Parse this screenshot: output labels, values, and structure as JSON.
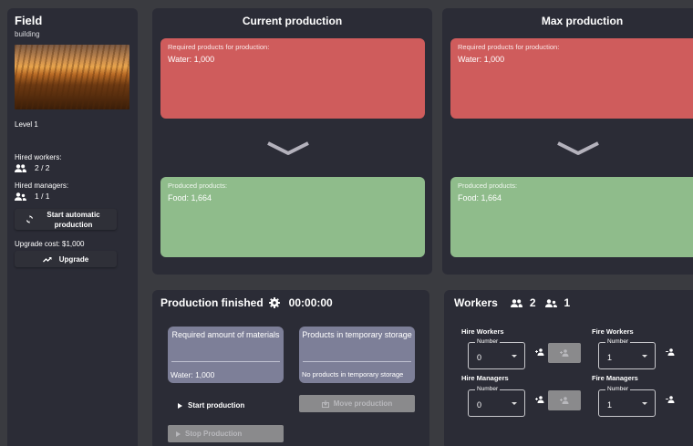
{
  "sidebar": {
    "title": "Field",
    "subtitle": "building",
    "image_icon": "wheat-field-photo",
    "level": "Level 1",
    "hired_workers_label": "Hired workers:",
    "hired_workers_value": "2 / 2",
    "hired_managers_label": "Hired managers:",
    "hired_managers_value": "1 / 1",
    "start_auto_label": "Start automatic production",
    "upgrade_cost": "Upgrade cost: $1,000",
    "upgrade_label": "Upgrade"
  },
  "current_production": {
    "title": "Current production",
    "required_label": "Required products for production:",
    "required_value": "Water: 1,000",
    "produced_label": "Produced products:",
    "produced_value": "Food: 1,664"
  },
  "max_production": {
    "title": "Max production",
    "required_label": "Required products for production:",
    "required_value": "Water: 1,000",
    "produced_label": "Produced products:",
    "produced_value": "Food: 1,664"
  },
  "production_status": {
    "title": "Production finished",
    "timer": "00:00:00",
    "required_title": "Required amount of materials",
    "required_value": "Water: 1,000",
    "storage_title": "Products in temporary storage",
    "storage_value": "No products in temporary storage",
    "start_label": "Start production",
    "move_label": "Move production",
    "stop_label": "Stop Production"
  },
  "workers": {
    "title": "Workers",
    "workers_count": "2",
    "managers_count": "1",
    "hire_workers_label": "Hire Workers",
    "fire_workers_label": "Fire Workers",
    "hire_managers_label": "Hire Managers",
    "fire_managers_label": "Fire Managers",
    "number_label": "Number",
    "hire_workers_value": "0",
    "fire_workers_value": "1",
    "hire_managers_value": "0",
    "fire_managers_value": "1"
  },
  "colors": {
    "background": "#3a3b40",
    "panel": "#2b2c36",
    "required_card": "#cf5c5c",
    "produced_card": "#8fbc8b",
    "material_card": "#7d7f98",
    "disabled": "#8a8a8c"
  }
}
